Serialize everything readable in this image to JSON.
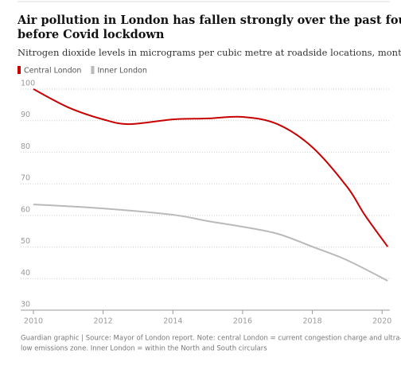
{
  "chart_data": {
    "type": "line",
    "title": "Air pollution in London has fallen strongly over the past four years, even before Covid lockdown",
    "title_lines": [
      "Air pollution in London has fallen strongly over the past four years, even",
      "before Covid lockdown"
    ],
    "subtitle": "Nitrogen dioxide levels in micrograms per cubic metre at roadside locations, monthly average",
    "series": [
      {
        "name": "Central London",
        "color": "#c70000",
        "x": [
          2010,
          2011,
          2012,
          2012.75,
          2014,
          2015,
          2016,
          2017,
          2018,
          2019,
          2019.5,
          2020.16
        ],
        "values": [
          100,
          94.2,
          90.4,
          88.9,
          90.4,
          90.7,
          91.2,
          88.9,
          81.6,
          69,
          60.2,
          50.1
        ]
      },
      {
        "name": "Inner London",
        "color": "#bababa",
        "x": [
          2010,
          2012,
          2014,
          2015,
          2016,
          2017,
          2018,
          2019,
          2020.16
        ],
        "values": [
          63.5,
          62.2,
          60.2,
          58.2,
          56.4,
          54.2,
          50.1,
          45.8,
          39.3
        ]
      }
    ],
    "xlim": [
      2010,
      2020.2
    ],
    "xticks": [
      2010,
      2012,
      2014,
      2016,
      2018,
      2020
    ],
    "ylim": [
      30,
      100
    ],
    "yticks": [
      30,
      40,
      50,
      60,
      70,
      80,
      90,
      100
    ],
    "grid": true,
    "source_lines": [
      "Guardian graphic | Source: Mayor of London report. Note: central London = current congestion charge and ultra-",
      "low emissions zone. Inner London = within the North and South circulars"
    ]
  }
}
